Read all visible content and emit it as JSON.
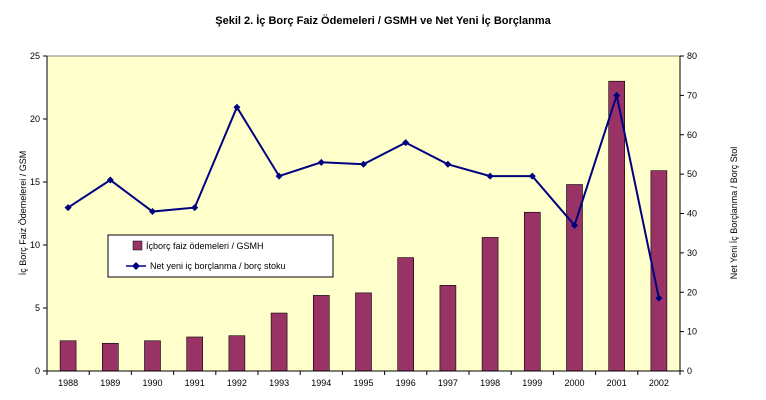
{
  "chart_data": {
    "type": "bar+line",
    "title": "Şekil 2. İç Borç Faiz Ödemeleri / GSMH ve Net Yeni İç Borçlanma",
    "categories": [
      "1988",
      "1989",
      "1990",
      "1991",
      "1992",
      "1993",
      "1994",
      "1995",
      "1996",
      "1997",
      "1998",
      "1999",
      "2000",
      "2001",
      "2002"
    ],
    "series": [
      {
        "name": "İçborç faiz ödemeleri / GSMH",
        "type": "bar",
        "axis": "left",
        "color": "#993366",
        "values": [
          2.4,
          2.2,
          2.4,
          2.7,
          2.8,
          4.6,
          6.0,
          6.2,
          9.0,
          6.8,
          10.6,
          12.6,
          14.8,
          23.0,
          15.9
        ]
      },
      {
        "name": "Net yeni iç borçlanma / borç stoku",
        "type": "line",
        "axis": "right",
        "color": "#000080",
        "values": [
          41.5,
          48.5,
          40.5,
          41.5,
          67.0,
          49.5,
          53.0,
          52.5,
          58.0,
          52.5,
          49.5,
          49.5,
          37.0,
          70.0,
          18.5
        ]
      }
    ],
    "ylabel": "İç Borç Faiz Ödemelerei / GSM",
    "y2label": "Net Yeni İç Borçlanma / Borç Stol",
    "ylim": [
      0,
      25
    ],
    "y2lim": [
      0,
      80
    ],
    "yticks": [
      0,
      5,
      10,
      15,
      20,
      25
    ],
    "y2ticks": [
      0,
      10,
      20,
      30,
      40,
      50,
      60,
      70,
      80
    ],
    "plot_background": "#ffffcc",
    "grid": false,
    "legend_position": "center-left"
  }
}
